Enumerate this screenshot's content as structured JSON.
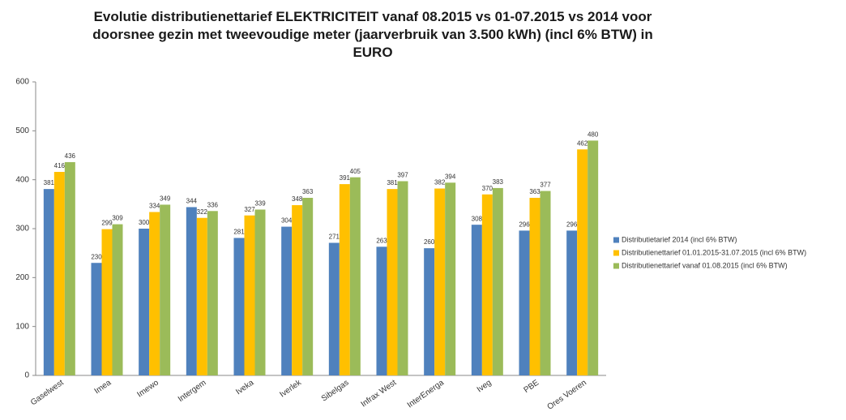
{
  "chart_data": {
    "type": "bar",
    "title": "Evolutie distributienettarief ELEKTRICITEIT vanaf 08.2015 vs 01-07.2015 vs 2014 voor doorsnee gezin met tweevoudige meter (jaarverbruik van 3.500 kWh) (incl 6% BTW) in EURO",
    "categories": [
      "Gaselwest",
      "Imea",
      "Imewo",
      "Intergem",
      "Iveka",
      "Iverlek",
      "Sibelgas",
      "Infrax West",
      "InterEnerga",
      "Iveg",
      "PBE",
      "Ores Voeren"
    ],
    "series": [
      {
        "name": "Distributietarief 2014 (incl 6% BTW)",
        "color": "#4f81bd",
        "values": [
          381,
          230,
          300,
          344,
          281,
          304,
          271,
          263,
          260,
          308,
          296,
          296
        ]
      },
      {
        "name": "Distributienettarief 01.01.2015-31.07.2015 (incl 6% BTW)",
        "color": "#ffc000",
        "values": [
          416,
          299,
          334,
          322,
          327,
          348,
          391,
          381,
          382,
          370,
          363,
          462
        ]
      },
      {
        "name": "Distributienettarief vanaf 01.08.2015 (incl 6% BTW)",
        "color": "#9bbb59",
        "values": [
          436,
          309,
          349,
          336,
          339,
          363,
          405,
          397,
          394,
          383,
          377,
          480
        ]
      }
    ],
    "ylim": [
      0,
      600
    ],
    "yticks": [
      0,
      100,
      200,
      300,
      400,
      500,
      600
    ],
    "grid": false,
    "legend": "right"
  }
}
